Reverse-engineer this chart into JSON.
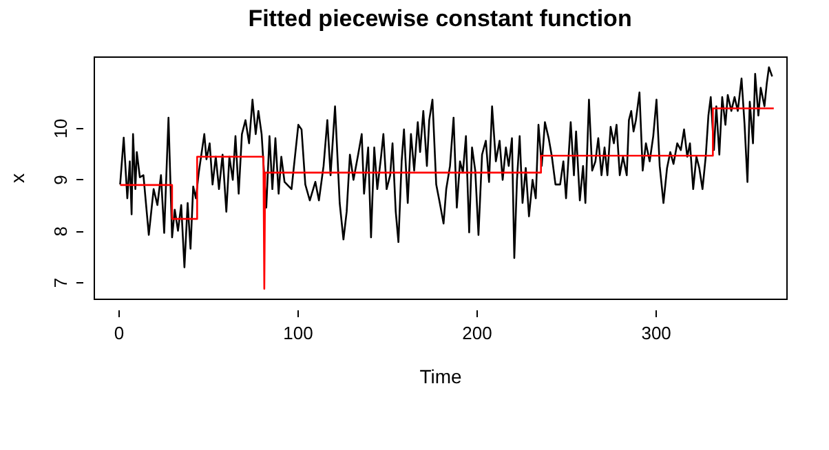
{
  "chart_data": {
    "type": "line",
    "title": "Fitted piecewise constant function",
    "xlabel": "Time",
    "ylabel": "x",
    "xlim": [
      -13.8,
      373
    ],
    "ylim": [
      6.68,
      11.39
    ],
    "xticks": [
      0,
      100,
      200,
      300
    ],
    "yticks": [
      7,
      8,
      9,
      10
    ],
    "grid": false,
    "line_style": "solid",
    "marker": "none",
    "series": [
      {
        "color": "#000000",
        "x": [
          1,
          3,
          5,
          6.4,
          7.4,
          8.2,
          9.5,
          10.3,
          12,
          14,
          17,
          19.7,
          21.8,
          23.8,
          25.6,
          28,
          30,
          31.5,
          33.3,
          35.1,
          36.9,
          38.7,
          40.3,
          41.8,
          43.3,
          44.9,
          48,
          49.2,
          51,
          52.6,
          54.4,
          56.2,
          58.2,
          60.3,
          62,
          63.9,
          65.4,
          67.2,
          69,
          71,
          73,
          74.9,
          76.7,
          78.2,
          80,
          82.6,
          84.4,
          86,
          87.7,
          89.5,
          91,
          92.8,
          96.7,
          100.5,
          102.3,
          104.4,
          106.9,
          110,
          112,
          114.6,
          116.7,
          118.5,
          121,
          123.6,
          125.7,
          127.5,
          129.3,
          131.3,
          133.9,
          135.9,
          137.2,
          139.5,
          141.1,
          142.9,
          144.6,
          146.7,
          148,
          149.8,
          151.8,
          153.1,
          154.9,
          156.4,
          158.2,
          159.5,
          161.6,
          163.4,
          165.2,
          167.2,
          168.5,
          170.3,
          172.3,
          173.6,
          175.4,
          177.5,
          179.5,
          181.6,
          183.1,
          185.2,
          187.2,
          189,
          190.8,
          192.4,
          194.1,
          195.9,
          197.5,
          199.3,
          201.1,
          203.1,
          205.2,
          207,
          208.7,
          210.8,
          212.9,
          214.6,
          216.4,
          218,
          219.8,
          221.1,
          222.6,
          224.1,
          225.7,
          227.5,
          229.3,
          231.3,
          233.1,
          234.6,
          236.4,
          238.2,
          240.3,
          242.1,
          244.1,
          246.7,
          248.5,
          250,
          252.6,
          254.4,
          255.6,
          257.7,
          259.5,
          260.8,
          262.8,
          264.6,
          266.4,
          268,
          269.8,
          271.5,
          273.1,
          274.9,
          276.7,
          278.2,
          280,
          281.8,
          283.9,
          285.1,
          286.4,
          287.7,
          289,
          291,
          292.8,
          294.6,
          296.7,
          298.7,
          300.5,
          302.3,
          304.4,
          306.4,
          308.2,
          310,
          312.1,
          314.1,
          315.9,
          317.7,
          319.2,
          321,
          322.8,
          324.4,
          326.2,
          328,
          329.5,
          330.8,
          332.6,
          333.9,
          335.6,
          337.2,
          339,
          340.3,
          342.3,
          344.1,
          345.9,
          348,
          349.7,
          351.3,
          352.6,
          354.4,
          355.6,
          357.4,
          358.7,
          360.8,
          362.1,
          363.3,
          365.1
        ],
        "values": [
          8.9,
          9.81,
          8.63,
          9.35,
          8.32,
          9.88,
          8.81,
          9.53,
          9.04,
          9.08,
          7.92,
          8.81,
          8.5,
          9.08,
          7.96,
          10.2,
          7.87,
          8.41,
          8.0,
          8.5,
          7.29,
          8.54,
          7.65,
          8.86,
          8.63,
          9.13,
          9.88,
          9.39,
          9.7,
          8.9,
          9.44,
          8.81,
          9.48,
          8.37,
          9.44,
          8.99,
          9.84,
          8.72,
          9.88,
          10.15,
          9.7,
          10.55,
          9.88,
          10.33,
          9.88,
          8.45,
          9.84,
          8.81,
          9.8,
          8.72,
          9.44,
          8.95,
          8.81,
          10.06,
          9.97,
          8.9,
          8.59,
          8.95,
          8.59,
          9.26,
          10.15,
          9.08,
          10.42,
          8.54,
          7.83,
          8.37,
          9.48,
          8.99,
          9.48,
          9.88,
          8.72,
          9.62,
          7.87,
          9.62,
          8.81,
          9.44,
          9.88,
          8.81,
          9.08,
          9.7,
          8.37,
          7.78,
          9.35,
          9.97,
          8.54,
          9.88,
          9.17,
          10.11,
          9.53,
          10.33,
          9.26,
          10.15,
          10.55,
          8.9,
          8.54,
          8.14,
          8.81,
          9.26,
          10.2,
          8.45,
          9.35,
          9.13,
          9.84,
          7.97,
          9.62,
          9.17,
          7.92,
          9.48,
          9.75,
          8.95,
          10.42,
          9.35,
          9.75,
          8.99,
          9.62,
          9.26,
          9.8,
          7.47,
          8.99,
          9.84,
          8.54,
          9.22,
          8.28,
          8.99,
          8.63,
          10.06,
          9.26,
          10.11,
          9.8,
          9.44,
          8.9,
          8.9,
          9.35,
          8.63,
          10.11,
          9.08,
          9.93,
          8.59,
          9.26,
          8.54,
          10.55,
          9.17,
          9.35,
          9.8,
          9.08,
          9.62,
          9.08,
          10.02,
          9.7,
          10.06,
          9.08,
          9.44,
          9.08,
          10.15,
          10.33,
          9.93,
          10.15,
          10.69,
          9.17,
          9.7,
          9.35,
          9.84,
          10.55,
          9.26,
          8.54,
          9.22,
          9.53,
          9.3,
          9.7,
          9.57,
          9.97,
          9.44,
          9.7,
          8.81,
          9.44,
          9.22,
          8.81,
          9.44,
          10.24,
          10.6,
          9.57,
          10.42,
          9.48,
          10.6,
          10.06,
          10.64,
          10.33,
          10.6,
          10.33,
          10.96,
          10.06,
          8.95,
          10.51,
          9.7,
          11.05,
          10.24,
          10.78,
          10.42,
          10.87,
          11.18,
          11.0
        ]
      },
      {
        "color": "#ff0000",
        "x": [
          1,
          30,
          30,
          44,
          44,
          81,
          81.5,
          82,
          236,
          236,
          332,
          332,
          366
        ],
        "values": [
          8.89,
          8.89,
          8.23,
          8.23,
          9.44,
          9.44,
          6.87,
          9.13,
          9.13,
          9.46,
          9.46,
          10.38,
          10.38
        ]
      }
    ]
  }
}
